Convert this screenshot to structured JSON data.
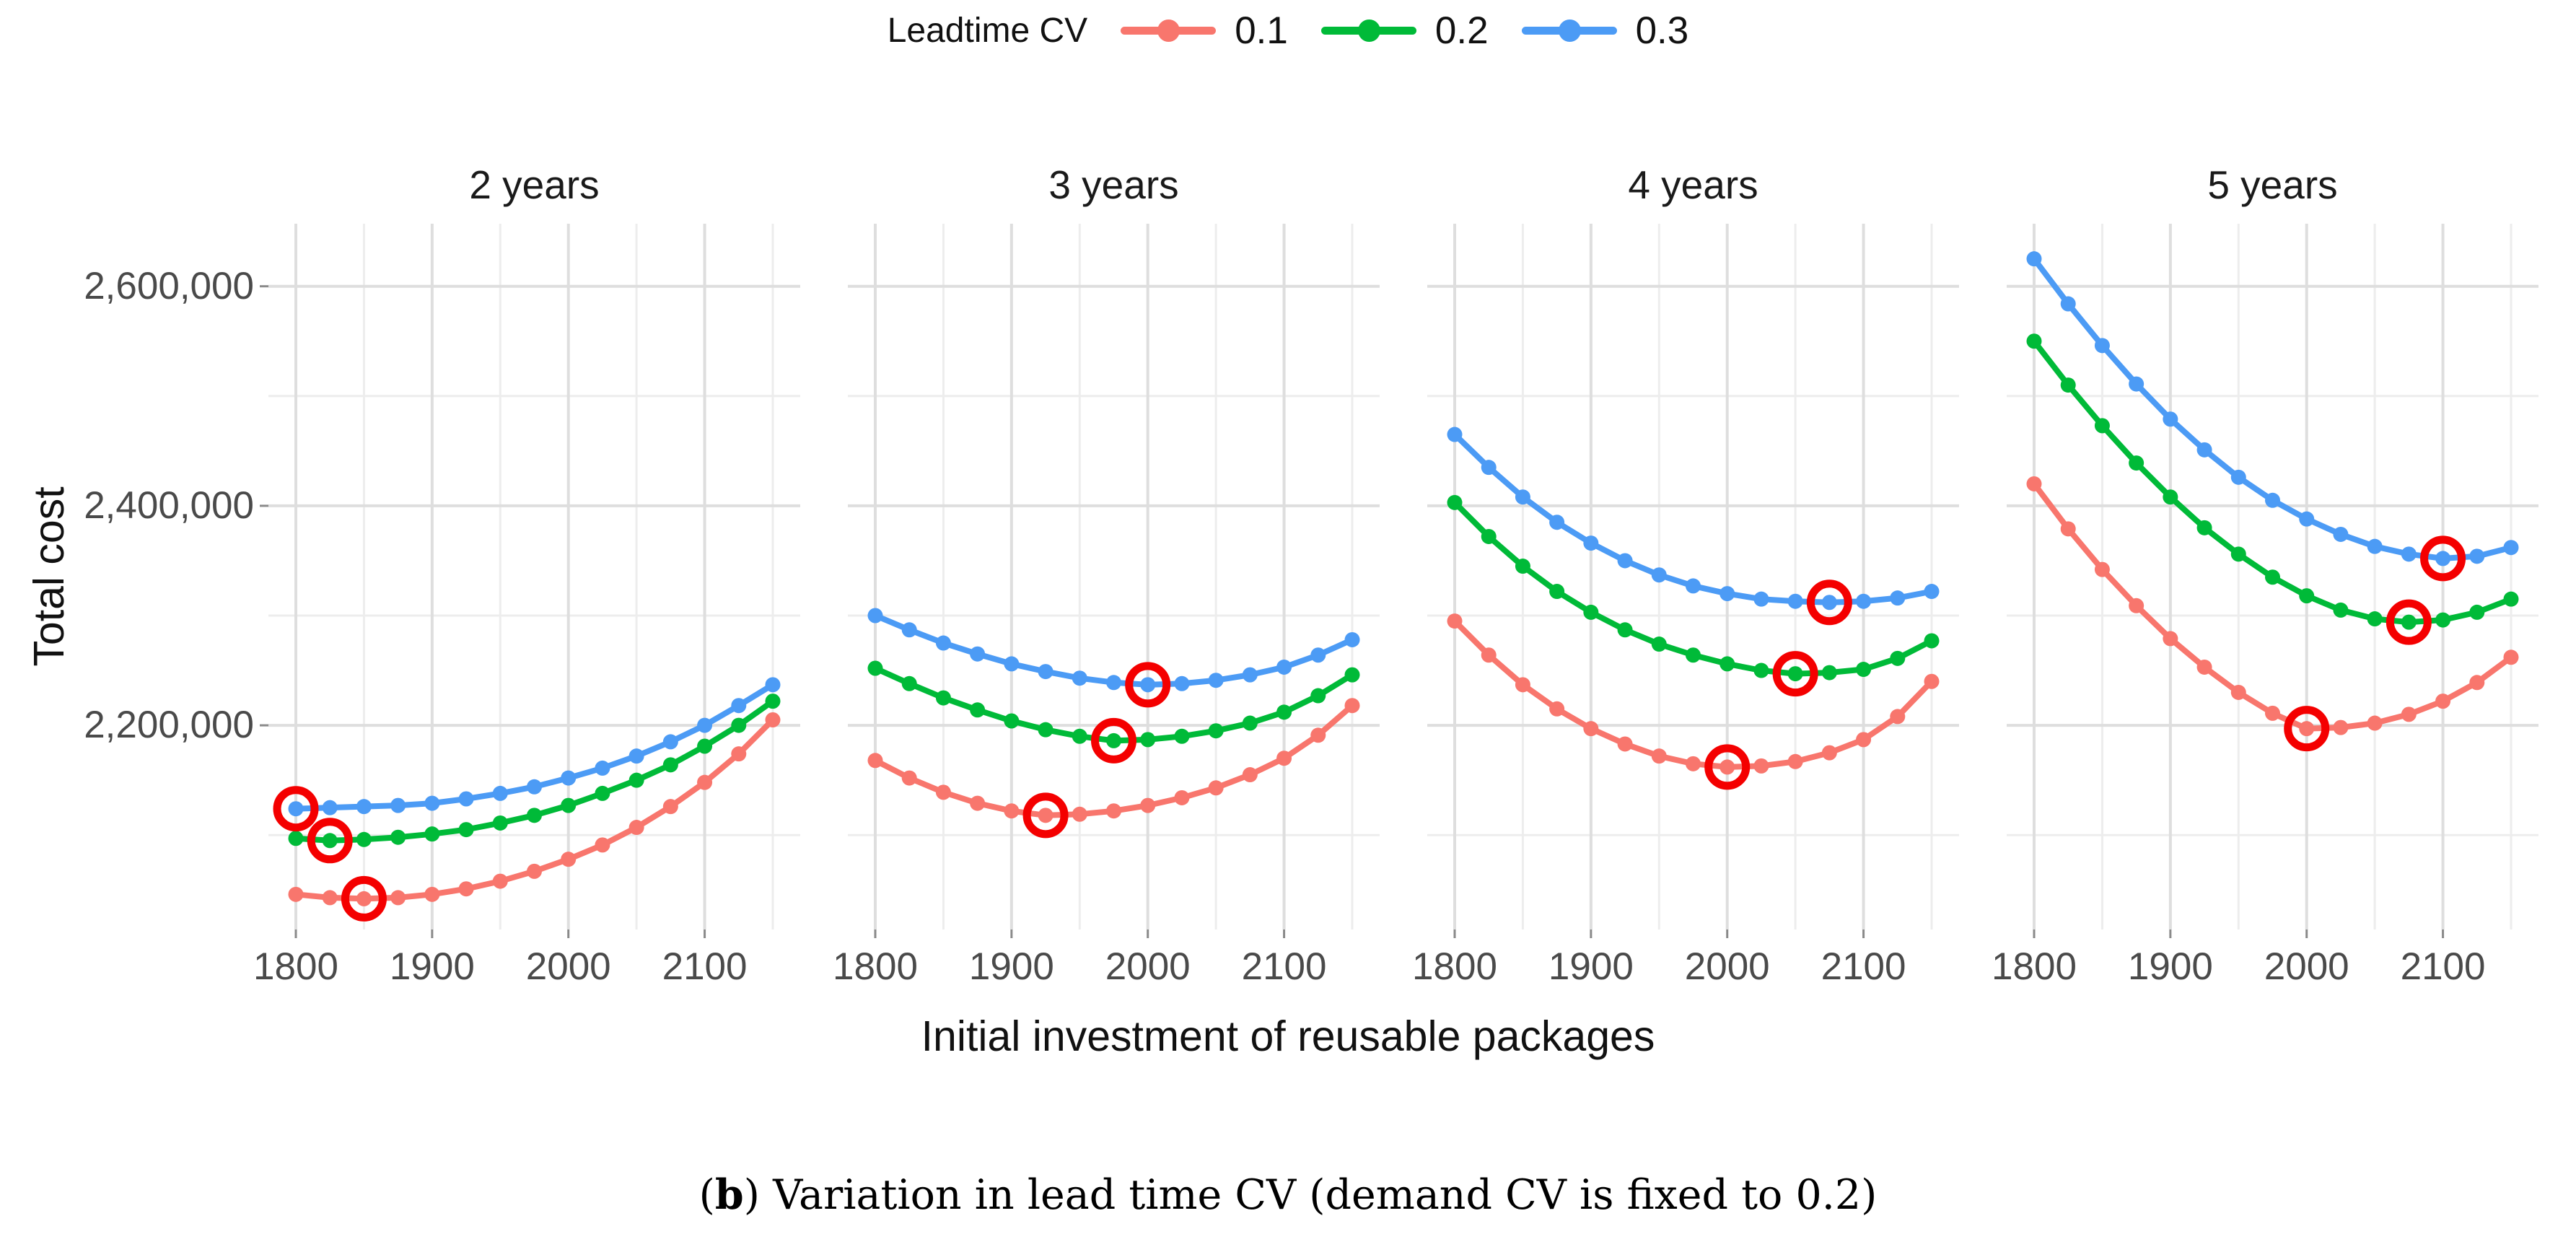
{
  "legend": {
    "title": "Leadtime CV",
    "items": [
      {
        "label": "0.1",
        "color": "#F8766D"
      },
      {
        "label": "0.2",
        "color": "#00BA38"
      },
      {
        "label": "0.3",
        "color": "#4C9BF5"
      }
    ]
  },
  "axes": {
    "x_title": "Initial investment of reusable packages",
    "y_title": "Total cost"
  },
  "caption": {
    "open": "(",
    "bold": "b",
    "rest": ") Variation in lead time CV (demand CV is fixed to 0.2)"
  },
  "chart_data": {
    "type": "line",
    "xlabel": "Initial investment of reusable packages",
    "ylabel": "Total cost",
    "legend_title": "Leadtime CV",
    "legend_position": "top",
    "grid": true,
    "x": [
      1800,
      1825,
      1850,
      1875,
      1900,
      1925,
      1950,
      1975,
      2000,
      2025,
      2050,
      2075,
      2100,
      2125,
      2150
    ],
    "x_ticks": {
      "values": [
        1800,
        1900,
        2000,
        2100
      ],
      "labels": [
        "1800",
        "1900",
        "2000",
        "2100"
      ],
      "minor": [
        1850,
        1950,
        2050,
        2150
      ]
    },
    "y_ticks": {
      "values": [
        2200000,
        2400000,
        2600000
      ],
      "labels": [
        "2,200,000",
        "2,400,000",
        "2,600,000"
      ],
      "minor": [
        2100000,
        2300000,
        2500000
      ]
    },
    "ylim": [
      2014000,
      2657000
    ],
    "xlim": [
      1780,
      2170
    ],
    "series_colors": {
      "0.1": "#F8766D",
      "0.2": "#00BA38",
      "0.3": "#4C9BF5"
    },
    "highlight_circle_color": "#F40000",
    "facets": [
      {
        "label": "2 years",
        "series": [
          {
            "name": "0.1",
            "values": [
              2046000,
              2043000,
              2042000,
              2043000,
              2046000,
              2051000,
              2058000,
              2067000,
              2078000,
              2091000,
              2107000,
              2126000,
              2148000,
              2174000,
              2205000
            ]
          },
          {
            "name": "0.2",
            "values": [
              2097000,
              2095000,
              2096000,
              2098000,
              2101000,
              2105000,
              2111000,
              2118000,
              2127000,
              2138000,
              2150000,
              2164000,
              2181000,
              2200000,
              2222000
            ]
          },
          {
            "name": "0.3",
            "values": [
              2124000,
              2125000,
              2126000,
              2127000,
              2129000,
              2133000,
              2138000,
              2144000,
              2152000,
              2161000,
              2172000,
              2185000,
              2200000,
              2218000,
              2237000
            ]
          }
        ],
        "circled_minima": [
          {
            "series": "0.1",
            "x": 1850
          },
          {
            "series": "0.2",
            "x": 1825
          },
          {
            "series": "0.3",
            "x": 1800
          }
        ]
      },
      {
        "label": "3 years",
        "series": [
          {
            "name": "0.1",
            "values": [
              2168000,
              2152000,
              2139000,
              2129000,
              2122000,
              2118000,
              2119000,
              2122000,
              2127000,
              2134000,
              2143000,
              2155000,
              2170000,
              2191000,
              2218000
            ]
          },
          {
            "name": "0.2",
            "values": [
              2252000,
              2238000,
              2225000,
              2214000,
              2204000,
              2196000,
              2190000,
              2186000,
              2187000,
              2190000,
              2195000,
              2202000,
              2212000,
              2227000,
              2246000
            ]
          },
          {
            "name": "0.3",
            "values": [
              2300000,
              2287000,
              2275000,
              2265000,
              2256000,
              2249000,
              2243000,
              2239000,
              2237000,
              2238000,
              2241000,
              2246000,
              2253000,
              2264000,
              2278000
            ]
          }
        ],
        "circled_minima": [
          {
            "series": "0.1",
            "x": 1925
          },
          {
            "series": "0.2",
            "x": 1975
          },
          {
            "series": "0.3",
            "x": 2000
          }
        ]
      },
      {
        "label": "4 years",
        "series": [
          {
            "name": "0.1",
            "values": [
              2295000,
              2264000,
              2237000,
              2215000,
              2197000,
              2183000,
              2172000,
              2165000,
              2162000,
              2163000,
              2167000,
              2175000,
              2187000,
              2208000,
              2240000
            ]
          },
          {
            "name": "0.2",
            "values": [
              2403000,
              2372000,
              2345000,
              2322000,
              2303000,
              2287000,
              2274000,
              2264000,
              2256000,
              2250000,
              2247000,
              2248000,
              2251000,
              2261000,
              2277000
            ]
          },
          {
            "name": "0.3",
            "values": [
              2465000,
              2435000,
              2408000,
              2385000,
              2366000,
              2350000,
              2337000,
              2327000,
              2320000,
              2315000,
              2313000,
              2312000,
              2313000,
              2316000,
              2322000
            ]
          }
        ],
        "circled_minima": [
          {
            "series": "0.1",
            "x": 2000
          },
          {
            "series": "0.2",
            "x": 2050
          },
          {
            "series": "0.3",
            "x": 2075
          }
        ]
      },
      {
        "label": "5 years",
        "series": [
          {
            "name": "0.1",
            "values": [
              2420000,
              2379000,
              2342000,
              2309000,
              2279000,
              2253000,
              2230000,
              2211000,
              2197000,
              2198000,
              2202000,
              2210000,
              2222000,
              2239000,
              2262000
            ]
          },
          {
            "name": "0.2",
            "values": [
              2550000,
              2510000,
              2473000,
              2439000,
              2408000,
              2380000,
              2356000,
              2335000,
              2318000,
              2305000,
              2297000,
              2294000,
              2296000,
              2303000,
              2315000
            ]
          },
          {
            "name": "0.3",
            "values": [
              2625000,
              2584000,
              2546000,
              2511000,
              2479000,
              2451000,
              2426000,
              2405000,
              2388000,
              2374000,
              2363000,
              2356000,
              2352000,
              2354000,
              2362000
            ]
          }
        ],
        "circled_minima": [
          {
            "series": "0.1",
            "x": 2000
          },
          {
            "series": "0.2",
            "x": 2075
          },
          {
            "series": "0.3",
            "x": 2100
          }
        ]
      }
    ]
  }
}
